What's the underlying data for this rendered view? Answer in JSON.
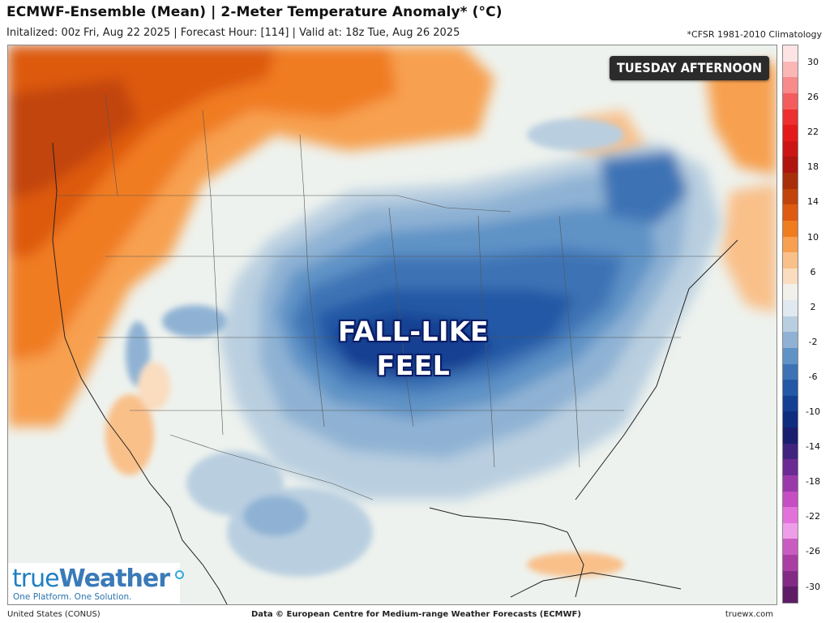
{
  "header": {
    "title": "ECMWF-Ensemble (Mean) | 2-Meter Temperature Anomaly* (°C)",
    "subtitle": "Initalized: 00z Fri, Aug 22 2025 | Forecast Hour: [114] | Valid at: 18z Tue, Aug 26 2025",
    "climatology_note": "*CFSR 1981-2010 Climatology"
  },
  "map": {
    "badge": "TUESDAY AFTERNOON",
    "callout_line1": "FALL-LIKE",
    "callout_line2": "FEEL",
    "region": "United States (CONUS)"
  },
  "colorbar": {
    "ticks": [
      "30",
      "26",
      "22",
      "18",
      "14",
      "10",
      "6",
      "2",
      "-2",
      "-6",
      "-10",
      "-14",
      "-18",
      "-22",
      "-26",
      "-30"
    ],
    "colors_top_to_bottom": [
      "#fde4e4",
      "#fbb6b6",
      "#f88a8a",
      "#f35d5d",
      "#ee2f2f",
      "#e41a1a",
      "#cc1414",
      "#b0140f",
      "#a82f0a",
      "#c2440b",
      "#dd5a10",
      "#f07c20",
      "#f7a04f",
      "#f9c08a",
      "#fadcbf",
      "#f2f0ea",
      "#dfe9ef",
      "#b9cfe0",
      "#8fb2d4",
      "#5f93c6",
      "#3d73b5",
      "#2258a5",
      "#143f92",
      "#0f2d7e",
      "#191e6e",
      "#3f237f",
      "#6b2a94",
      "#9a3aaa",
      "#c54ec2",
      "#e272d9",
      "#ee9ee8",
      "#c95cc1",
      "#a93ea3",
      "#832a85",
      "#5e1c66"
    ]
  },
  "logo": {
    "brand_a": "true",
    "brand_b": "Weather",
    "tagline": "One Platform. One Solution."
  },
  "footer": {
    "left": "United States (CONUS)",
    "center": "Data © European Centre for Medium-range Weather Forecasts (ECMWF)",
    "right": "truewx.com"
  }
}
